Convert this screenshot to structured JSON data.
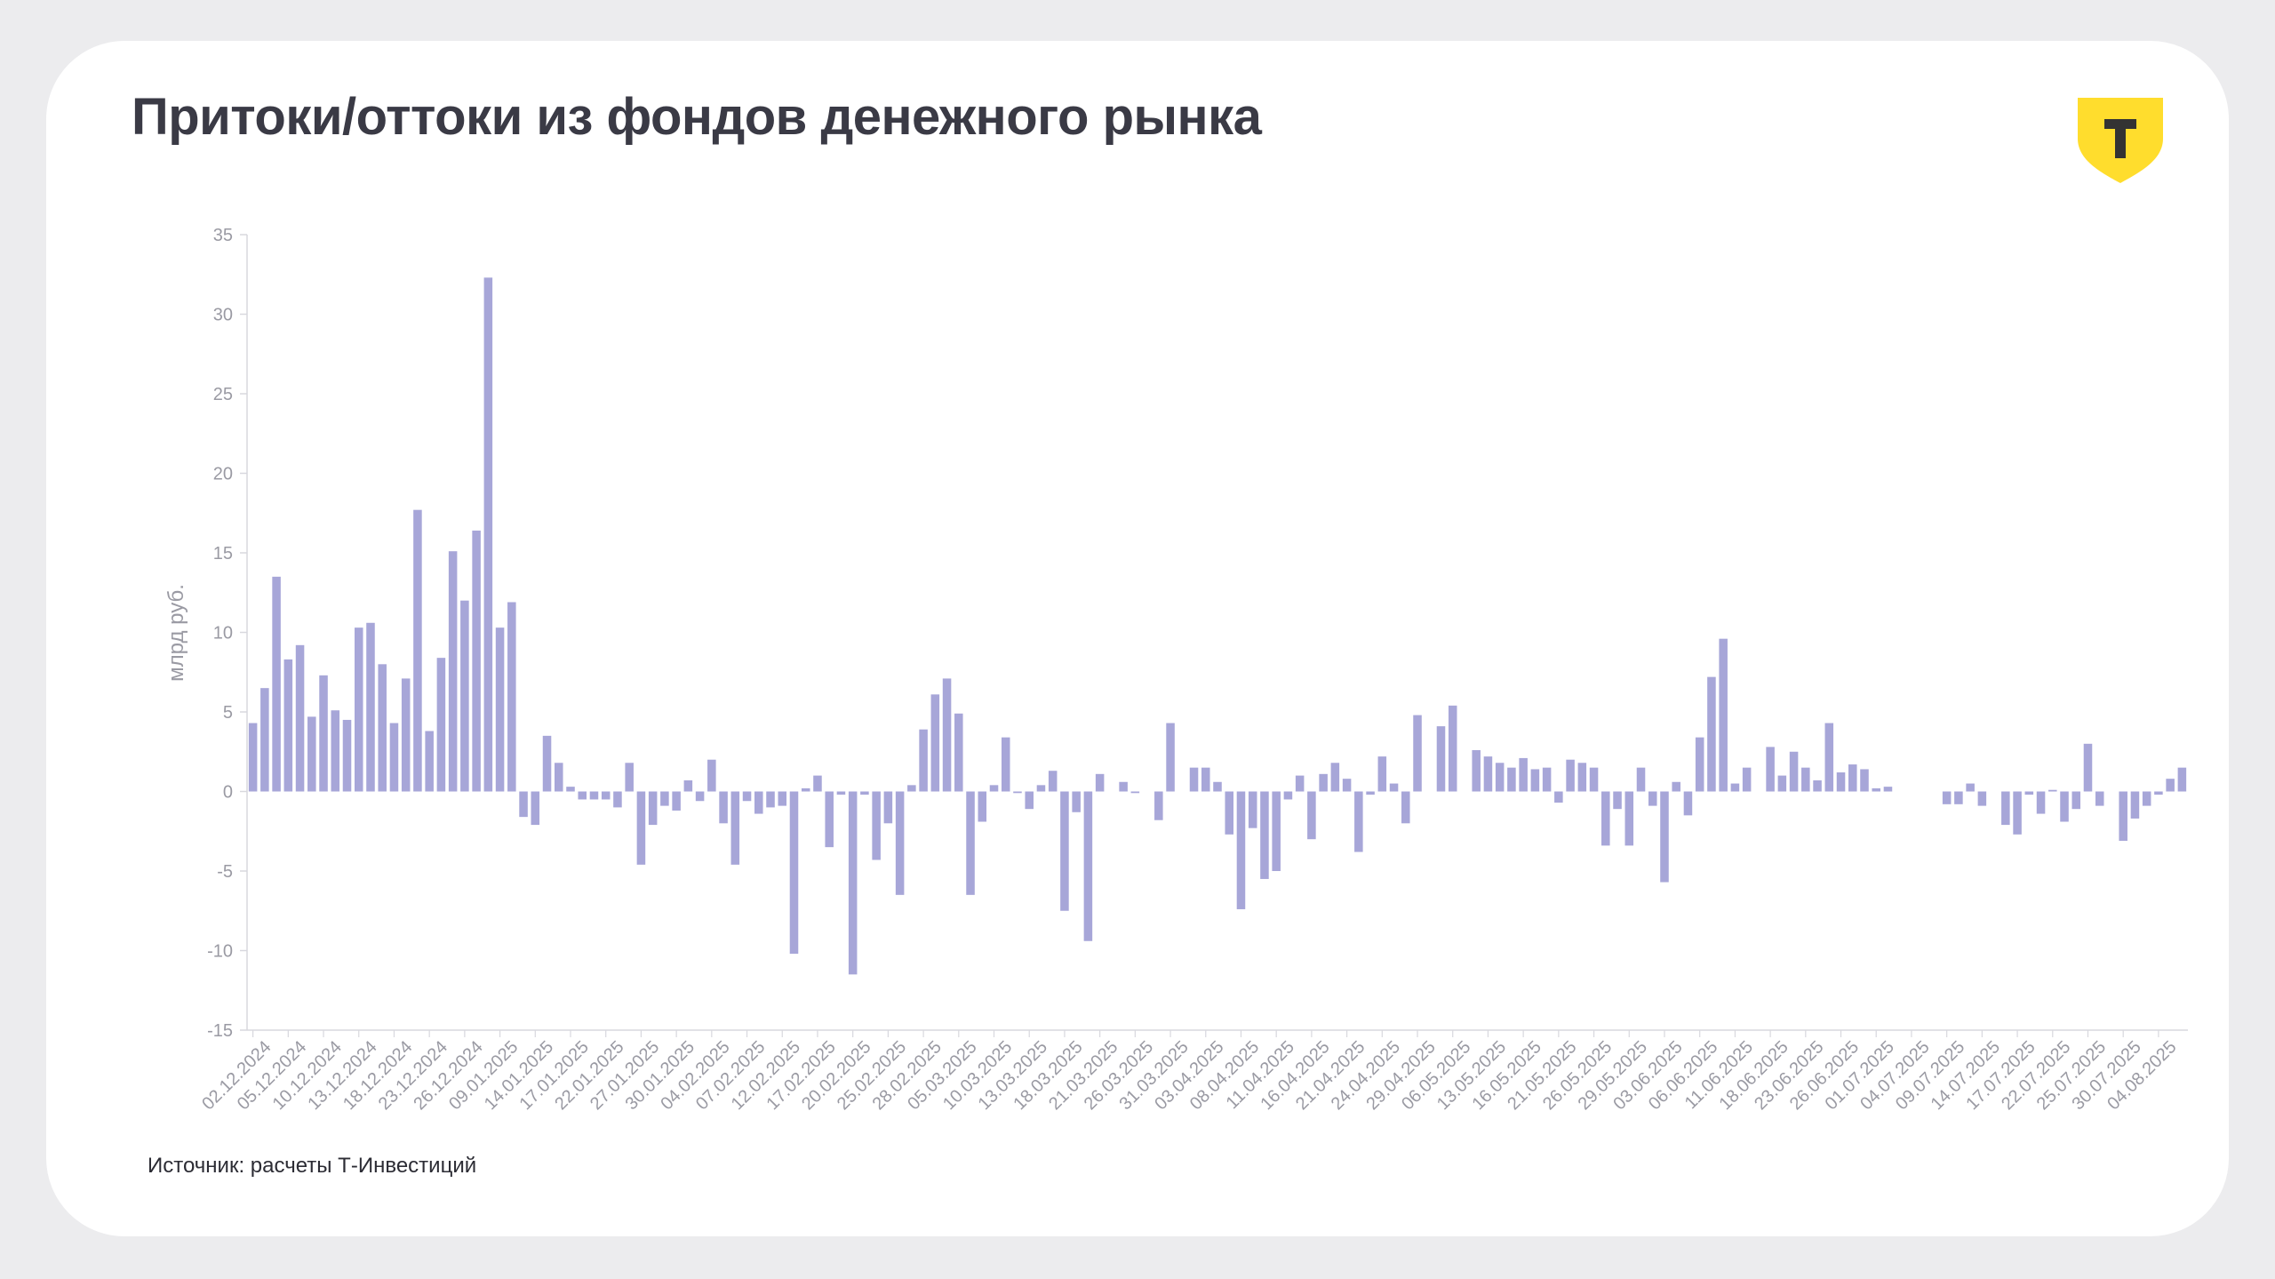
{
  "title": "Притоки/оттоки из фондов денежного рынка",
  "source": "Источник: расчеты Т-Инвестиций",
  "logo": {
    "name": "t-logo-icon",
    "glyph": "Т",
    "color": "#ffdd2d"
  },
  "colors": {
    "bar": "#a7a6d8",
    "axis": "#d8d8de",
    "text": "#9a9aa3"
  },
  "chart_data": {
    "type": "bar",
    "ylabel": "млрд руб.",
    "xlabel": "",
    "ylim": [
      -15,
      35
    ],
    "yticks": [
      35,
      30,
      25,
      20,
      15,
      10,
      5,
      0,
      -5,
      -10,
      -15
    ],
    "grid": false,
    "xtick_labels": [
      "02.12.2024",
      "05.12.2024",
      "10.12.2024",
      "13.12.2024",
      "18.12.2024",
      "23.12.2024",
      "26.12.2024",
      "09.01.2025",
      "14.01.2025",
      "17.01.2025",
      "22.01.2025",
      "27.01.2025",
      "30.01.2025",
      "04.02.2025",
      "07.02.2025",
      "12.02.2025",
      "17.02.2025",
      "20.02.2025",
      "25.02.2025",
      "28.02.2025",
      "05.03.2025",
      "10.03.2025",
      "13.03.2025",
      "18.03.2025",
      "21.03.2025",
      "26.03.2025",
      "31.03.2025",
      "03.04.2025",
      "08.04.2025",
      "11.04.2025",
      "16.04.2025",
      "21.04.2025",
      "24.04.2025",
      "29.04.2025",
      "06.05.2025",
      "13.05.2025",
      "16.05.2025",
      "21.05.2025",
      "26.05.2025",
      "29.05.2025",
      "03.06.2025",
      "06.06.2025",
      "11.06.2025",
      "18.06.2025",
      "23.06.2025",
      "26.06.2025",
      "01.07.2025",
      "04.07.2025",
      "09.07.2025",
      "14.07.2025",
      "17.07.2025",
      "22.07.2025",
      "25.07.2025",
      "30.07.2025",
      "04.08.2025"
    ],
    "values": [
      4.3,
      6.5,
      13.5,
      8.3,
      9.2,
      4.7,
      7.3,
      5.1,
      4.5,
      10.3,
      10.6,
      8.0,
      4.3,
      7.1,
      17.7,
      3.8,
      8.4,
      15.1,
      12.0,
      16.4,
      32.3,
      10.3,
      11.9,
      -1.6,
      -2.1,
      3.5,
      1.8,
      0.3,
      -0.5,
      -0.5,
      -0.5,
      -1.0,
      1.8,
      -4.6,
      -2.1,
      -0.9,
      -1.2,
      0.7,
      -0.6,
      2.0,
      -2.0,
      -4.6,
      -0.6,
      -1.4,
      -1.0,
      -0.9,
      -10.2,
      0.2,
      1.0,
      -3.5,
      -0.2,
      -11.5,
      -0.2,
      -4.3,
      -2.0,
      -6.5,
      0.4,
      3.9,
      6.1,
      7.1,
      4.9,
      -6.5,
      -1.9,
      0.4,
      3.4,
      -0.1,
      -1.1,
      0.4,
      1.3,
      -7.5,
      -1.3,
      -9.4,
      1.1,
      0.0,
      0.6,
      -0.1,
      0.0,
      -1.8,
      4.3,
      0.0,
      1.5,
      1.5,
      0.6,
      -2.7,
      -7.4,
      -2.3,
      -5.5,
      -5.0,
      -0.5,
      1.0,
      -3.0,
      1.1,
      1.8,
      0.8,
      -3.8,
      -0.2,
      2.2,
      0.5,
      -2.0,
      4.8,
      0.0,
      4.1,
      5.4,
      0.0,
      2.6,
      2.2,
      1.8,
      1.5,
      2.1,
      1.4,
      1.5,
      -0.7,
      2.0,
      1.8,
      1.5,
      -3.4,
      -1.1,
      -3.4,
      1.5,
      -0.9,
      -5.7,
      0.6,
      -1.5,
      3.4,
      7.2,
      9.6,
      0.5,
      1.5,
      0.0,
      2.8,
      1.0,
      2.5,
      1.5,
      0.7,
      4.3,
      1.2,
      1.7,
      1.4,
      0.2,
      0.3,
      0.0,
      0.0,
      0.0,
      0.0,
      -0.8,
      -0.8,
      0.5,
      -0.9,
      0.0,
      -2.1,
      -2.7,
      -0.2,
      -1.4,
      0.1,
      -1.9,
      -1.1,
      3.0,
      -0.9,
      0.0,
      -3.1,
      -1.7,
      -0.9,
      -0.2,
      0.8,
      1.5
    ]
  }
}
